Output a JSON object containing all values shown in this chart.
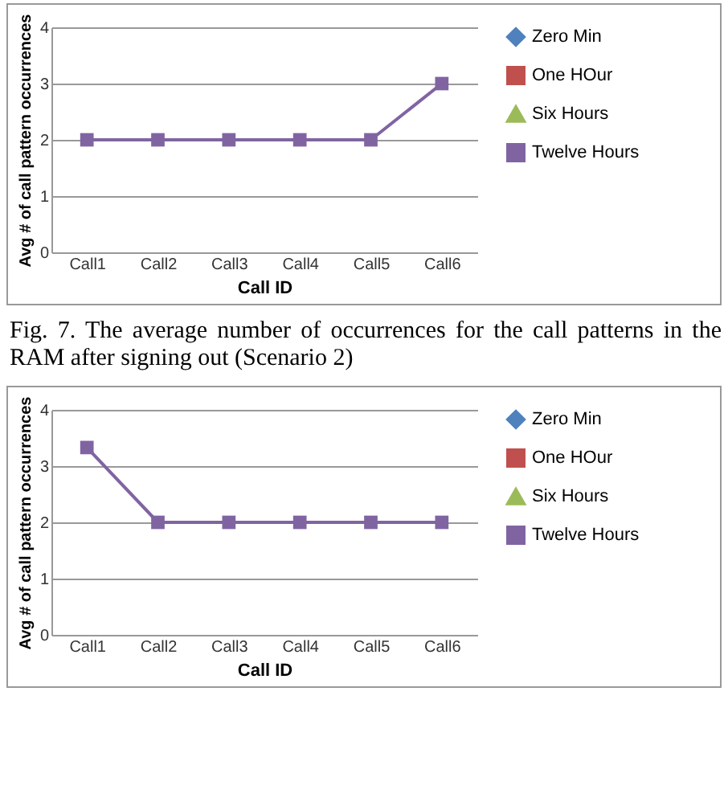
{
  "chart_data": [
    {
      "type": "line",
      "xlabel": "Call ID",
      "ylabel": "Avg # of call pattern occurrences",
      "categories": [
        "Call1",
        "Call2",
        "Call3",
        "Call4",
        "Call5",
        "Call6"
      ],
      "ylim": [
        0,
        4
      ],
      "yticks": [
        0,
        1,
        2,
        3,
        4
      ],
      "grid": "y",
      "legend": "right",
      "line_style": "solid",
      "annotations": [
        "Fig. 7.    The average number of occurrences for the call patterns in the RAM after signing out (Scenario 2)"
      ],
      "series": [
        {
          "name": "Zero Min",
          "color": "#4f81bd",
          "marker": "diamond",
          "values": [
            null,
            null,
            null,
            null,
            null,
            null
          ]
        },
        {
          "name": "One HOur",
          "color": "#c0504d",
          "marker": "square",
          "values": [
            null,
            null,
            null,
            null,
            null,
            null
          ]
        },
        {
          "name": "Six Hours",
          "color": "#9bbb59",
          "marker": "triangle",
          "values": [
            null,
            null,
            null,
            null,
            null,
            null
          ]
        },
        {
          "name": "Twelve Hours",
          "color": "#8064a2",
          "marker": "square",
          "values": [
            2,
            2,
            2,
            2,
            2,
            3
          ]
        }
      ]
    },
    {
      "type": "line",
      "xlabel": "Call ID",
      "ylabel": "Avg # of call pattern occurrences",
      "categories": [
        "Call1",
        "Call2",
        "Call3",
        "Call4",
        "Call5",
        "Call6"
      ],
      "ylim": [
        0,
        4
      ],
      "yticks": [
        0,
        1,
        2,
        3,
        4
      ],
      "grid": "y",
      "legend": "right",
      "line_style": "solid",
      "series": [
        {
          "name": "Zero Min",
          "color": "#4f81bd",
          "marker": "diamond",
          "values": [
            null,
            null,
            null,
            null,
            null,
            null
          ]
        },
        {
          "name": "One HOur",
          "color": "#c0504d",
          "marker": "square",
          "values": [
            null,
            null,
            null,
            null,
            null,
            null
          ]
        },
        {
          "name": "Six Hours",
          "color": "#9bbb59",
          "marker": "triangle",
          "values": [
            null,
            null,
            null,
            null,
            null,
            null
          ]
        },
        {
          "name": "Twelve Hours",
          "color": "#8064a2",
          "marker": "square",
          "values": [
            3.33,
            2,
            2,
            2,
            2,
            2
          ]
        }
      ]
    }
  ]
}
